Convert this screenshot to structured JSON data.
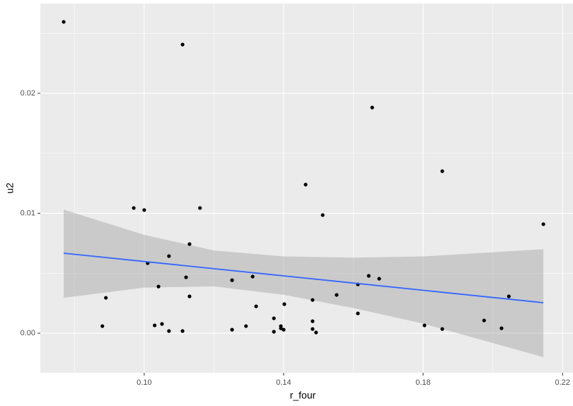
{
  "chart_data": {
    "type": "scatter",
    "x_label": "r_four",
    "y_label": "u2",
    "x": [
      0.0769,
      0.111,
      0.1654,
      0.1855,
      0.1463,
      0.1512,
      0.097,
      0.1,
      0.116,
      0.2145,
      0.1071,
      0.113,
      0.101,
      0.112,
      0.1041,
      0.113,
      0.089,
      0.088,
      0.103,
      0.1051,
      0.1071,
      0.111,
      0.1252,
      0.1311,
      0.1321,
      0.1252,
      0.1292,
      0.1372,
      0.1372,
      0.1392,
      0.1392,
      0.14,
      0.1402,
      0.1483,
      0.1483,
      0.1483,
      0.1493,
      0.1552,
      0.1613,
      0.1613,
      0.1644,
      0.1674,
      0.1804,
      0.1855,
      0.1975,
      0.2025,
      0.2046
    ],
    "values": [
      0.02596,
      0.02407,
      0.01882,
      0.01351,
      0.01239,
      0.00985,
      0.01044,
      0.01027,
      0.01044,
      0.00909,
      0.00643,
      0.00743,
      0.00584,
      0.00466,
      0.00389,
      0.00307,
      0.00295,
      0.00059,
      0.00065,
      0.00077,
      0.00018,
      0.00018,
      0.00442,
      0.00472,
      0.00224,
      0.00029,
      0.00059,
      0.00124,
      0.00012,
      0.00059,
      0.00041,
      0.00029,
      0.00242,
      0.00277,
      0.001,
      0.00035,
      6e-05,
      0.00319,
      0.00165,
      0.00407,
      0.00478,
      0.00454,
      0.00065,
      0.00035,
      0.00106,
      0.00041,
      0.00307
    ],
    "color": "#000000",
    "smooth": {
      "color": "#3366FF",
      "band_color": "#999999",
      "x": [
        0.0769,
        0.1,
        0.12,
        0.14,
        0.16,
        0.18,
        0.2145
      ],
      "values": [
        0.00667,
        0.00598,
        0.00538,
        0.00478,
        0.00418,
        0.00358,
        0.00254
      ],
      "upper": [
        0.0103,
        0.0082,
        0.0069,
        0.0064,
        0.0063,
        0.0064,
        0.007
      ],
      "lower": [
        0.00295,
        0.0038,
        0.0039,
        0.0032,
        0.0021,
        0.0008,
        -0.002
      ]
    },
    "xlim": [
      0.0702,
      0.223
    ],
    "ylim": [
      -0.0033,
      0.02749
    ],
    "xticks": [
      {
        "value": 0.1,
        "label": "0.10"
      },
      {
        "value": 0.14,
        "label": "0.14"
      },
      {
        "value": 0.18,
        "label": "0.18"
      },
      {
        "value": 0.22,
        "label": "0.22"
      }
    ],
    "yticks": [
      {
        "value": 0.0,
        "label": "0.00"
      },
      {
        "value": 0.01,
        "label": "0.01"
      },
      {
        "value": 0.02,
        "label": "0.02"
      }
    ],
    "minor_xticks": [
      0.08,
      0.12,
      0.16,
      0.2
    ],
    "minor_yticks": [
      0.005,
      0.015,
      0.025
    ],
    "grid": true
  }
}
